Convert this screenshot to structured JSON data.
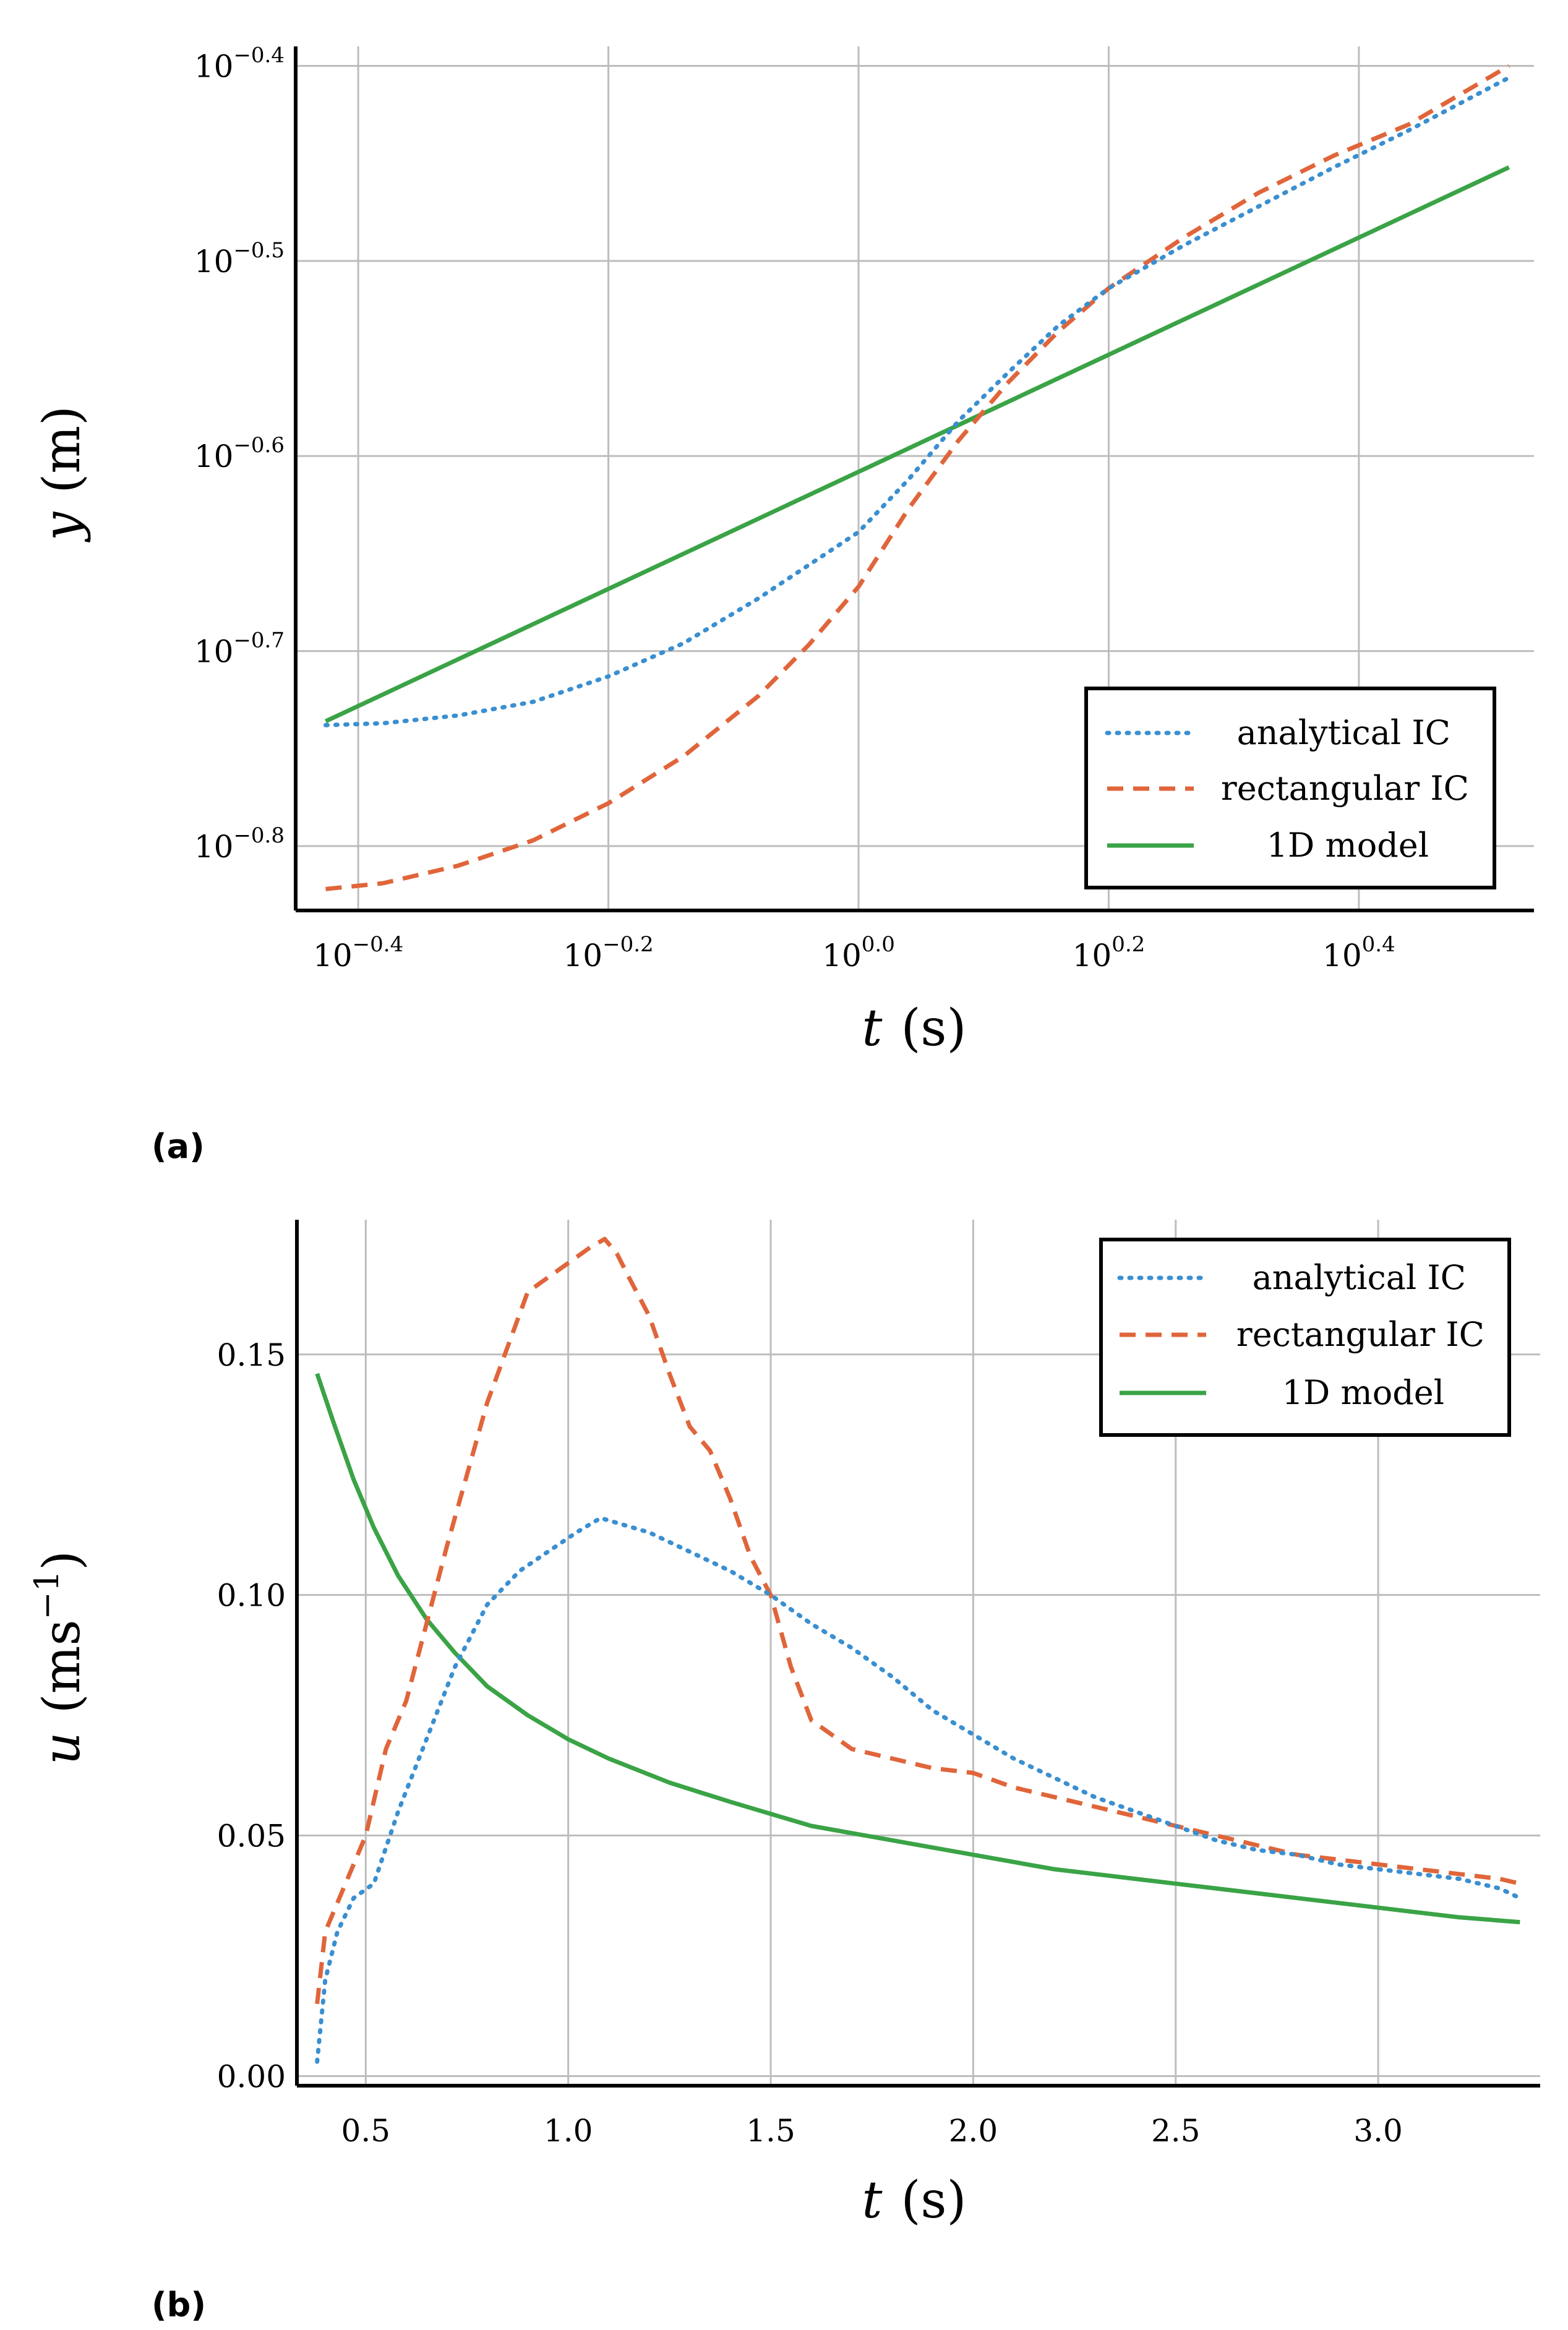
{
  "colors": {
    "analytical": "#3a8fd0",
    "rectangular": "#e0653a",
    "model": "#3aa346",
    "grid": "#bdbdbd",
    "axis": "#000000"
  },
  "chart_data": [
    {
      "type": "line",
      "panel": "(a)",
      "xscale": "log10",
      "yscale": "log10",
      "xlabel": {
        "var": "t",
        "unit": "(s)"
      },
      "ylabel": {
        "var": "y",
        "unit": "(m)"
      },
      "xlim_log10": [
        -0.45,
        0.54
      ],
      "ylim_log10": [
        -0.833,
        -0.39
      ],
      "xticks": [
        {
          "base": "10",
          "exp": "−0.4",
          "value": -0.4
        },
        {
          "base": "10",
          "exp": "−0.2",
          "value": -0.2
        },
        {
          "base": "10",
          "exp": "0.0",
          "value": 0.0
        },
        {
          "base": "10",
          "exp": "0.2",
          "value": 0.2
        },
        {
          "base": "10",
          "exp": "0.4",
          "value": 0.4
        }
      ],
      "yticks": [
        {
          "base": "10",
          "exp": "−0.4",
          "value": -0.4
        },
        {
          "base": "10",
          "exp": "−0.5",
          "value": -0.5
        },
        {
          "base": "10",
          "exp": "−0.6",
          "value": -0.6
        },
        {
          "base": "10",
          "exp": "−0.7",
          "value": -0.7
        },
        {
          "base": "10",
          "exp": "−0.8",
          "value": -0.8
        }
      ],
      "legend": [
        "analytical IC",
        "rectangular IC",
        "1D model"
      ],
      "legend_position": "bottom-right",
      "series": [
        {
          "name": "analytical IC",
          "style": "dotted",
          "color": "analytical",
          "x": [
            -0.426,
            -0.38,
            -0.32,
            -0.26,
            -0.2,
            -0.14,
            -0.08,
            -0.04,
            0.0,
            0.04,
            0.08,
            0.12,
            0.16,
            0.2,
            0.26,
            0.32,
            0.38,
            0.44,
            0.52
          ],
          "y": [
            -0.738,
            -0.737,
            -0.733,
            -0.726,
            -0.713,
            -0.696,
            -0.673,
            -0.656,
            -0.639,
            -0.612,
            -0.582,
            -0.557,
            -0.533,
            -0.514,
            -0.492,
            -0.472,
            -0.452,
            -0.433,
            -0.406
          ]
        },
        {
          "name": "rectangular IC",
          "style": "dashed",
          "color": "rectangular",
          "x": [
            -0.426,
            -0.38,
            -0.32,
            -0.26,
            -0.2,
            -0.14,
            -0.08,
            -0.04,
            0.0,
            0.04,
            0.08,
            0.12,
            0.16,
            0.2,
            0.26,
            0.32,
            0.38,
            0.44,
            0.52
          ],
          "y": [
            -0.822,
            -0.819,
            -0.81,
            -0.797,
            -0.778,
            -0.754,
            -0.723,
            -0.697,
            -0.667,
            -0.627,
            -0.592,
            -0.562,
            -0.536,
            -0.514,
            -0.488,
            -0.465,
            -0.446,
            -0.43,
            -0.4
          ]
        },
        {
          "name": "1D model",
          "style": "solid",
          "color": "model",
          "x": [
            -0.426,
            0.52
          ],
          "y": [
            -0.736,
            -0.452
          ]
        }
      ]
    },
    {
      "type": "line",
      "panel": "(b)",
      "xscale": "linear",
      "yscale": "linear",
      "xlabel": {
        "var": "t",
        "unit": "(s)"
      },
      "ylabel": {
        "var": "u",
        "unit": "(ms",
        "unit_sup": "−1",
        "unit_close": ")"
      },
      "xlim": [
        0.33,
        3.4
      ],
      "ylim": [
        -0.002,
        0.178
      ],
      "xticks": [
        "0.5",
        "1.0",
        "1.5",
        "2.0",
        "2.5",
        "3.0"
      ],
      "yticks": [
        "0.00",
        "0.05",
        "0.10",
        "0.15"
      ],
      "legend": [
        "analytical IC",
        "rectangular IC",
        "1D model"
      ],
      "legend_position": "top-right",
      "series": [
        {
          "name": "analytical IC",
          "style": "dotted",
          "color": "analytical",
          "x": [
            0.38,
            0.4,
            0.43,
            0.47,
            0.52,
            0.58,
            0.65,
            0.72,
            0.8,
            0.88,
            0.95,
            1.02,
            1.08,
            1.12,
            1.2,
            1.3,
            1.4,
            1.5,
            1.6,
            1.7,
            1.8,
            1.9,
            2.0,
            2.1,
            2.2,
            2.3,
            2.4,
            2.5,
            2.6,
            2.7,
            2.8,
            2.9,
            3.0,
            3.1,
            3.2,
            3.3,
            3.35
          ],
          "y": [
            0.003,
            0.02,
            0.03,
            0.037,
            0.04,
            0.055,
            0.07,
            0.085,
            0.098,
            0.105,
            0.109,
            0.113,
            0.116,
            0.115,
            0.113,
            0.109,
            0.105,
            0.1,
            0.094,
            0.089,
            0.083,
            0.076,
            0.071,
            0.066,
            0.062,
            0.058,
            0.055,
            0.052,
            0.049,
            0.047,
            0.046,
            0.044,
            0.043,
            0.042,
            0.041,
            0.039,
            0.037
          ]
        },
        {
          "name": "rectangular IC",
          "style": "dashed",
          "color": "rectangular",
          "x": [
            0.38,
            0.4,
            0.45,
            0.5,
            0.55,
            0.6,
            0.7,
            0.8,
            0.9,
            1.0,
            1.05,
            1.09,
            1.12,
            1.15,
            1.2,
            1.25,
            1.3,
            1.35,
            1.4,
            1.45,
            1.5,
            1.55,
            1.6,
            1.7,
            1.8,
            1.9,
            2.0,
            2.1,
            2.2,
            2.3,
            2.4,
            2.5,
            2.6,
            2.7,
            2.8,
            2.9,
            3.0,
            3.1,
            3.2,
            3.3,
            3.35
          ],
          "y": [
            0.015,
            0.03,
            0.04,
            0.05,
            0.068,
            0.078,
            0.11,
            0.14,
            0.163,
            0.169,
            0.172,
            0.174,
            0.171,
            0.166,
            0.158,
            0.146,
            0.135,
            0.13,
            0.12,
            0.108,
            0.1,
            0.085,
            0.074,
            0.068,
            0.066,
            0.064,
            0.063,
            0.06,
            0.058,
            0.056,
            0.054,
            0.052,
            0.05,
            0.048,
            0.046,
            0.045,
            0.044,
            0.043,
            0.042,
            0.041,
            0.04
          ]
        },
        {
          "name": "1D model",
          "style": "solid",
          "color": "model",
          "x": [
            0.38,
            0.42,
            0.47,
            0.52,
            0.58,
            0.65,
            0.72,
            0.8,
            0.9,
            1.0,
            1.1,
            1.25,
            1.4,
            1.6,
            1.8,
            2.0,
            2.2,
            2.4,
            2.6,
            2.8,
            3.0,
            3.2,
            3.35
          ],
          "y": [
            0.146,
            0.136,
            0.124,
            0.114,
            0.104,
            0.095,
            0.088,
            0.081,
            0.075,
            0.07,
            0.066,
            0.061,
            0.057,
            0.052,
            0.049,
            0.046,
            0.043,
            0.041,
            0.039,
            0.037,
            0.035,
            0.033,
            0.032
          ]
        }
      ]
    }
  ]
}
